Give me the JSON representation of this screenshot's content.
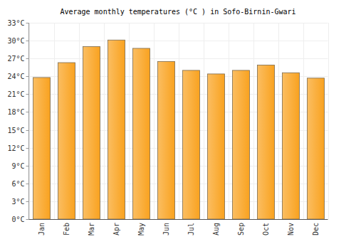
{
  "chart_data": {
    "type": "bar",
    "title": "Average monthly temperatures (°C ) in Sofo-Birnin-Gwari",
    "categories": [
      "Jan",
      "Feb",
      "Mar",
      "Apr",
      "May",
      "Jun",
      "Jul",
      "Aug",
      "Sep",
      "Oct",
      "Nov",
      "Dec"
    ],
    "values": [
      23.8,
      26.3,
      29.0,
      30.1,
      28.7,
      26.5,
      25.0,
      24.4,
      25.0,
      25.9,
      24.6,
      23.7
    ],
    "color": "#f9a21f",
    "ylim": [
      0,
      33
    ],
    "yticks": [
      {
        "value": 0,
        "label": "0°C"
      },
      {
        "value": 3,
        "label": "3°C"
      },
      {
        "value": 6,
        "label": "6°C"
      },
      {
        "value": 9,
        "label": "9°C"
      },
      {
        "value": 12,
        "label": "12°C"
      },
      {
        "value": 15,
        "label": "15°C"
      },
      {
        "value": 18,
        "label": "18°C"
      },
      {
        "value": 21,
        "label": "21°C"
      },
      {
        "value": 24,
        "label": "24°C"
      },
      {
        "value": 27,
        "label": "27°C"
      },
      {
        "value": 30,
        "label": "30°C"
      },
      {
        "value": 33,
        "label": "33°C"
      }
    ],
    "grid": true
  }
}
